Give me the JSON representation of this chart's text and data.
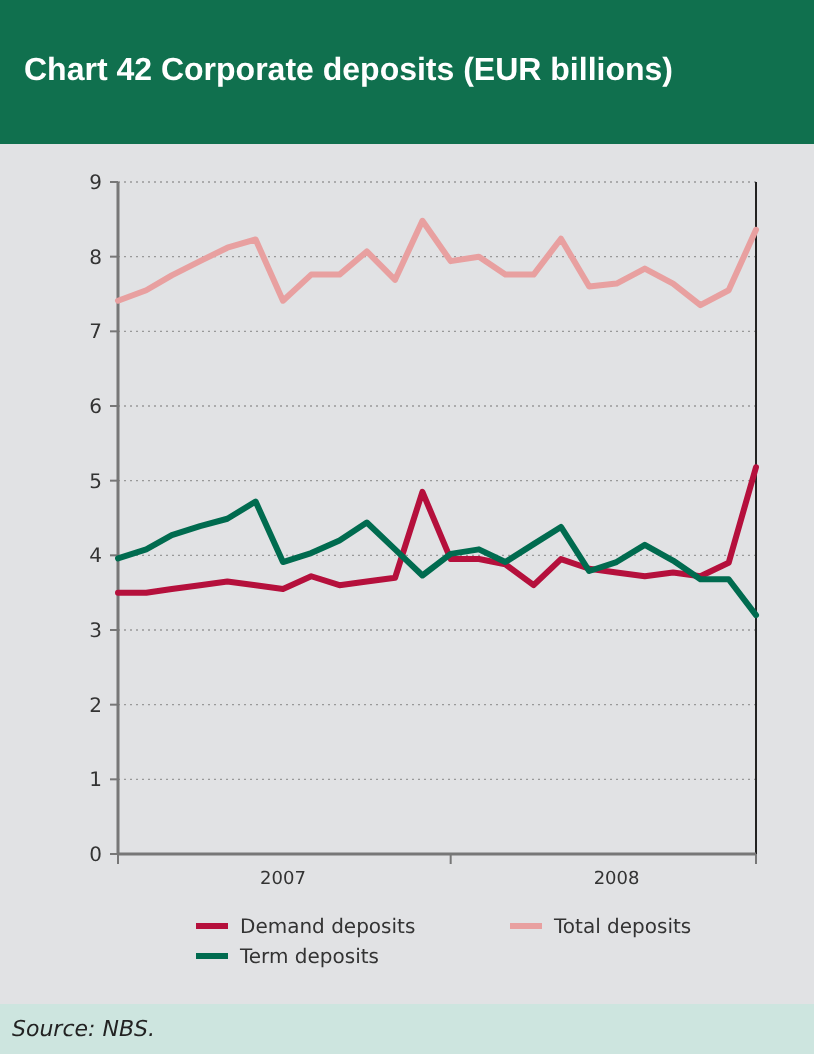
{
  "chart_data": {
    "type": "line",
    "title": "Chart 42 Corporate deposits (EUR billions)",
    "x": [
      "2007-01",
      "2007-02",
      "2007-03",
      "2007-04",
      "2007-05",
      "2007-06",
      "2007-07",
      "2007-08",
      "2007-09",
      "2007-10",
      "2007-11",
      "2007-12",
      "2008-01",
      "2008-02",
      "2008-03",
      "2008-04",
      "2008-05",
      "2008-06",
      "2008-07",
      "2008-08",
      "2008-09",
      "2008-10",
      "2008-11",
      "2008-12"
    ],
    "xlim": [
      "2007-01",
      "2008-12"
    ],
    "xticks": [
      {
        "value": "2007-01",
        "label": null
      },
      {
        "value": "2007-07",
        "label": "2007"
      },
      {
        "value": "2008-01",
        "label": null
      },
      {
        "value": "2008-07",
        "label": "2008"
      },
      {
        "value": "2008-12",
        "label": null
      }
    ],
    "ylim": [
      0,
      9
    ],
    "yticks": [
      0,
      1,
      2,
      3,
      4,
      5,
      6,
      7,
      8,
      9
    ],
    "grid": "y",
    "legend": "bottom",
    "line_style": "solid",
    "marker": "none",
    "series": [
      {
        "name": "Demand deposits",
        "color": "#b5103c",
        "values": [
          3.5,
          3.5,
          3.55,
          3.6,
          3.65,
          3.6,
          3.55,
          3.72,
          3.6,
          3.65,
          3.7,
          4.85,
          3.95,
          3.95,
          3.88,
          3.6,
          3.95,
          3.82,
          3.77,
          3.72,
          3.77,
          3.72,
          3.9,
          5.18
        ]
      },
      {
        "name": "Total deposits",
        "color": "#e8a0a0",
        "values": [
          7.41,
          7.55,
          7.75,
          7.94,
          8.12,
          8.23,
          7.41,
          7.76,
          7.76,
          8.07,
          7.69,
          8.48,
          7.94,
          8.0,
          7.76,
          7.76,
          8.24,
          7.6,
          7.64,
          7.84,
          7.64,
          7.35,
          7.55,
          8.36
        ]
      },
      {
        "name": "Term deposits",
        "color": "#006b4f",
        "values": [
          3.96,
          4.08,
          4.27,
          4.39,
          4.49,
          4.72,
          3.91,
          4.03,
          4.2,
          4.44,
          4.08,
          3.73,
          4.02,
          4.08,
          3.91,
          4.15,
          4.38,
          3.79,
          3.91,
          4.14,
          3.93,
          3.68,
          3.68,
          3.2
        ]
      }
    ],
    "annotations": [
      "Source: NBS."
    ]
  }
}
